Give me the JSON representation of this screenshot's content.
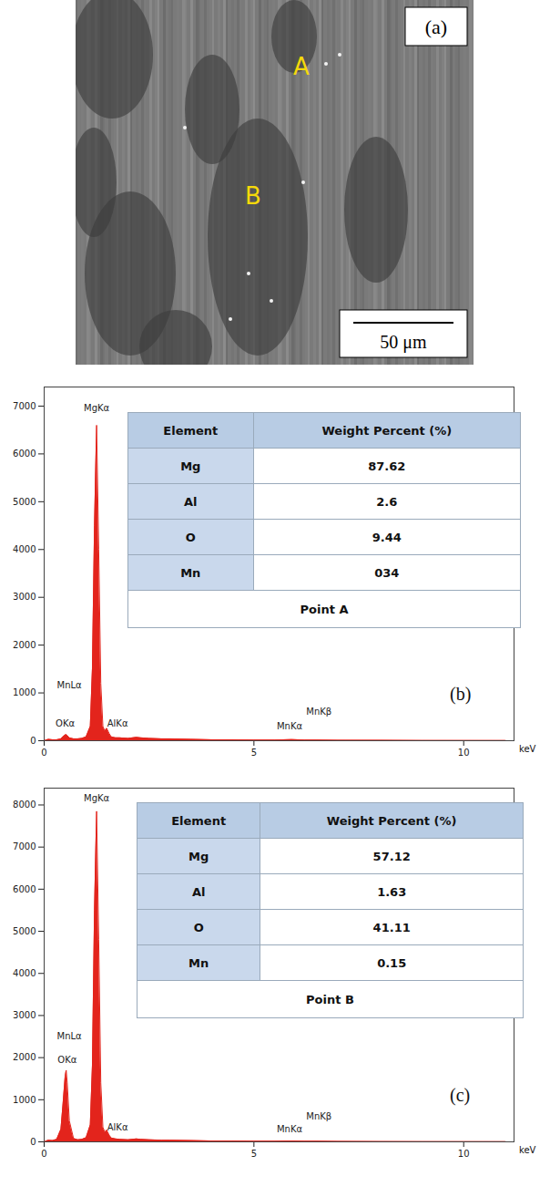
{
  "image": {
    "panel_label": "(a)",
    "point_labels": [
      "A",
      "B"
    ],
    "scale_bar": "50 μm"
  },
  "chart_data": [
    {
      "type": "area",
      "panel_label": "(b)",
      "x_label": "keV",
      "color": "#e3241c",
      "x": [
        0,
        0.1,
        0.2,
        0.3,
        0.4,
        0.45,
        0.5,
        0.525,
        0.55,
        0.6,
        0.7,
        0.8,
        0.9,
        1.0,
        1.1,
        1.15,
        1.2,
        1.25,
        1.3,
        1.35,
        1.4,
        1.45,
        1.49,
        1.55,
        1.6,
        1.7,
        1.8,
        2.0,
        2.2,
        2.3,
        2.5,
        2.8,
        3.0,
        3.5,
        4.0,
        4.5,
        5.0,
        5.5,
        5.9,
        6.2,
        6.5,
        7.0,
        8.0,
        9.0,
        10.0,
        11.0
      ],
      "values": [
        0,
        30,
        20,
        20,
        40,
        80,
        120,
        130,
        110,
        60,
        40,
        40,
        50,
        80,
        300,
        1500,
        4500,
        6600,
        4000,
        1200,
        300,
        200,
        260,
        150,
        80,
        60,
        60,
        50,
        70,
        60,
        50,
        40,
        40,
        30,
        20,
        20,
        15,
        15,
        25,
        15,
        15,
        10,
        8,
        5,
        4,
        3
      ],
      "xlim": [
        0,
        11.2
      ],
      "xticks": [
        0,
        5,
        10
      ],
      "ylim": [
        0,
        7400
      ],
      "yticks": [
        0,
        1000,
        2000,
        3000,
        4000,
        5000,
        6000,
        7000
      ],
      "annotations": [
        {
          "text": "MgKα",
          "x": 1.25,
          "y": 6950
        },
        {
          "text": "MnLα",
          "x": 0.6,
          "y": 1150
        },
        {
          "text": "OKα",
          "x": 0.5,
          "y": 350
        },
        {
          "text": "AlKα",
          "x": 1.75,
          "y": 350
        },
        {
          "text": "MnKα",
          "x": 5.85,
          "y": 300
        },
        {
          "text": "MnKβ",
          "x": 6.55,
          "y": 600
        }
      ],
      "table": {
        "header": [
          "Element",
          "Weight Percent (%)"
        ],
        "rows": [
          [
            "Mg",
            "87.62"
          ],
          [
            "Al",
            "2.6"
          ],
          [
            "O",
            "9.44"
          ],
          [
            "Mn",
            "034"
          ]
        ],
        "caption": "Point A"
      }
    },
    {
      "type": "area",
      "panel_label": "(c)",
      "x_label": "keV",
      "color": "#e3241c",
      "x": [
        0,
        0.1,
        0.2,
        0.3,
        0.4,
        0.45,
        0.5,
        0.525,
        0.55,
        0.6,
        0.7,
        0.8,
        0.9,
        1.0,
        1.1,
        1.15,
        1.2,
        1.25,
        1.3,
        1.35,
        1.4,
        1.45,
        1.49,
        1.55,
        1.6,
        1.7,
        1.8,
        2.0,
        2.2,
        2.3,
        2.5,
        2.8,
        3.0,
        3.5,
        4.0,
        4.5,
        5.0,
        5.5,
        5.9,
        6.2,
        6.5,
        7.0,
        8.0,
        9.0,
        10.0,
        11.0
      ],
      "values": [
        0,
        40,
        30,
        60,
        300,
        900,
        1550,
        1700,
        1400,
        500,
        80,
        50,
        60,
        100,
        400,
        1800,
        5500,
        7850,
        4800,
        1400,
        350,
        220,
        280,
        160,
        90,
        70,
        60,
        50,
        70,
        60,
        50,
        40,
        40,
        30,
        20,
        20,
        15,
        15,
        20,
        15,
        15,
        10,
        8,
        5,
        4,
        3
      ],
      "xlim": [
        0,
        11.2
      ],
      "xticks": [
        0,
        5,
        10
      ],
      "ylim": [
        0,
        8400
      ],
      "yticks": [
        0,
        1000,
        2000,
        3000,
        4000,
        5000,
        6000,
        7000,
        8000
      ],
      "annotations": [
        {
          "text": "MgKα",
          "x": 1.25,
          "y": 8150
        },
        {
          "text": "MnLα",
          "x": 0.6,
          "y": 2500
        },
        {
          "text": "OKα",
          "x": 0.55,
          "y": 1950
        },
        {
          "text": "AlKα",
          "x": 1.75,
          "y": 350
        },
        {
          "text": "MnKα",
          "x": 5.85,
          "y": 300
        },
        {
          "text": "MnKβ",
          "x": 6.55,
          "y": 600
        }
      ],
      "table": {
        "header": [
          "Element",
          "Weight Percent (%)"
        ],
        "rows": [
          [
            "Mg",
            "57.12"
          ],
          [
            "Al",
            "1.63"
          ],
          [
            "O",
            "41.11"
          ],
          [
            "Mn",
            "0.15"
          ]
        ],
        "caption": "Point B"
      }
    }
  ]
}
